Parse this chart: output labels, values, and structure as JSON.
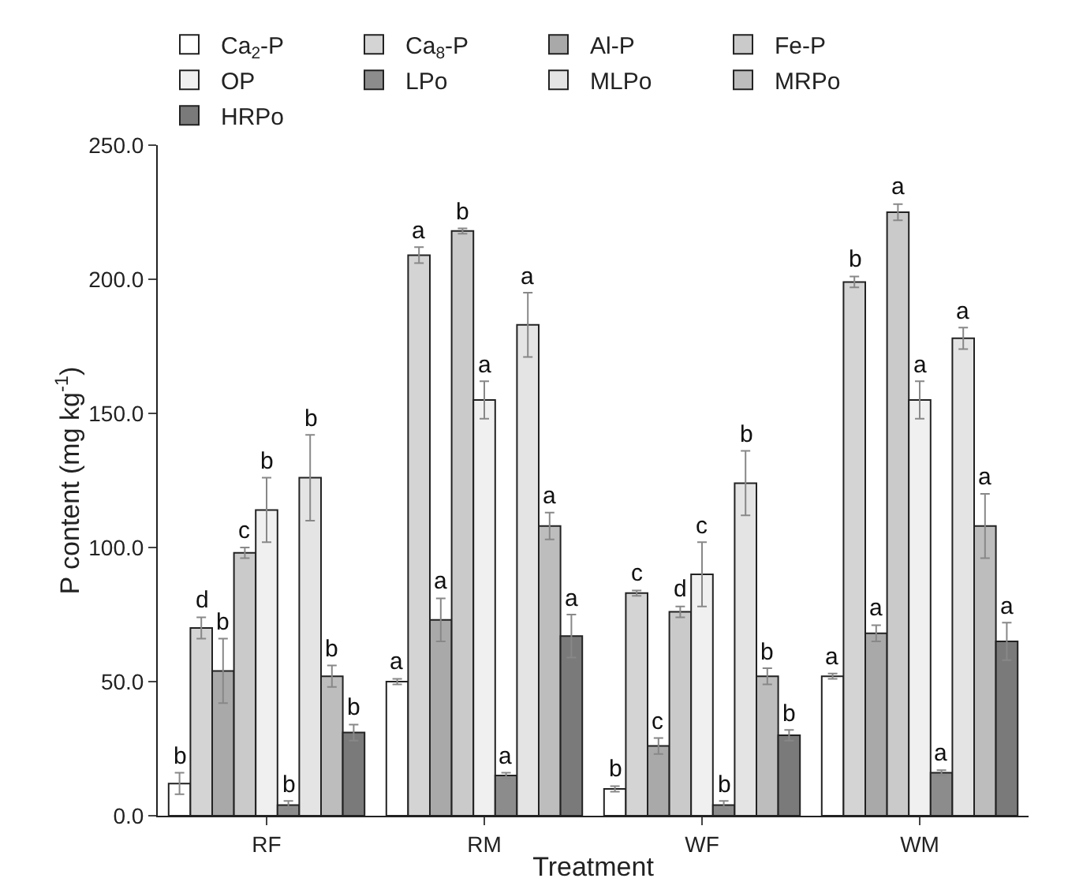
{
  "chart_data": {
    "type": "bar",
    "xlabel": "Treatment",
    "ylabel": "P content (mg kg$^{-1}$)",
    "categories": [
      "RF",
      "RM",
      "WF",
      "WM"
    ],
    "ylim": [
      0,
      250
    ],
    "yticks": [
      {
        "value": 0,
        "label": "0.0"
      },
      {
        "value": 50,
        "label": "50.0"
      },
      {
        "value": 100,
        "label": "100.0"
      },
      {
        "value": 150,
        "label": "150.0"
      },
      {
        "value": 200,
        "label": "200.0"
      },
      {
        "value": 250,
        "label": "250.0"
      }
    ],
    "grid": false,
    "legend": "top",
    "series": [
      {
        "name": "Ca$_{2}$-P",
        "color": "#ffffff",
        "values": [
          12,
          50,
          10,
          52
        ],
        "errors": [
          4,
          1,
          1,
          1
        ],
        "value_labels": [
          "b",
          "a",
          "b",
          "a"
        ]
      },
      {
        "name": "Ca$_{8}$-P",
        "color": "#d4d4d4",
        "values": [
          70,
          209,
          83,
          199
        ],
        "errors": [
          4,
          3,
          1,
          2
        ],
        "value_labels": [
          "d",
          "a",
          "c",
          "b"
        ]
      },
      {
        "name": "Al-P",
        "color": "#a9a9a9",
        "values": [
          54,
          73,
          26,
          68
        ],
        "errors": [
          12,
          8,
          3,
          3
        ],
        "value_labels": [
          "b",
          "a",
          "c",
          "a"
        ]
      },
      {
        "name": "Fe-P",
        "color": "#cacaca",
        "values": [
          98,
          218,
          76,
          225
        ],
        "errors": [
          2,
          1,
          2,
          3
        ],
        "value_labels": [
          "c",
          "b",
          "d",
          "a"
        ]
      },
      {
        "name": "OP",
        "color": "#f0f0f0",
        "values": [
          114,
          155,
          90,
          155
        ],
        "errors": [
          12,
          7,
          12,
          7
        ],
        "value_labels": [
          "b",
          "a",
          "c",
          "a"
        ]
      },
      {
        "name": "LPo",
        "color": "#8c8c8c",
        "values": [
          4,
          15,
          4,
          16
        ],
        "errors": [
          1.5,
          1,
          1.5,
          1
        ],
        "value_labels": [
          "b",
          "a",
          "b",
          "a"
        ]
      },
      {
        "name": "MLPo",
        "color": "#e4e4e4",
        "values": [
          126,
          183,
          124,
          178
        ],
        "errors": [
          16,
          12,
          12,
          4
        ],
        "value_labels": [
          "b",
          "a",
          "b",
          "a"
        ]
      },
      {
        "name": "MRPo",
        "color": "#bdbdbd",
        "values": [
          52,
          108,
          52,
          108
        ],
        "errors": [
          4,
          5,
          3,
          12
        ],
        "value_labels": [
          "b",
          "a",
          "b",
          "a"
        ]
      },
      {
        "name": "HRPo",
        "color": "#7a7a7a",
        "values": [
          31,
          67,
          30,
          65
        ],
        "errors": [
          3,
          8,
          2,
          7
        ],
        "value_labels": [
          "b",
          "a",
          "b",
          "a"
        ]
      }
    ]
  }
}
